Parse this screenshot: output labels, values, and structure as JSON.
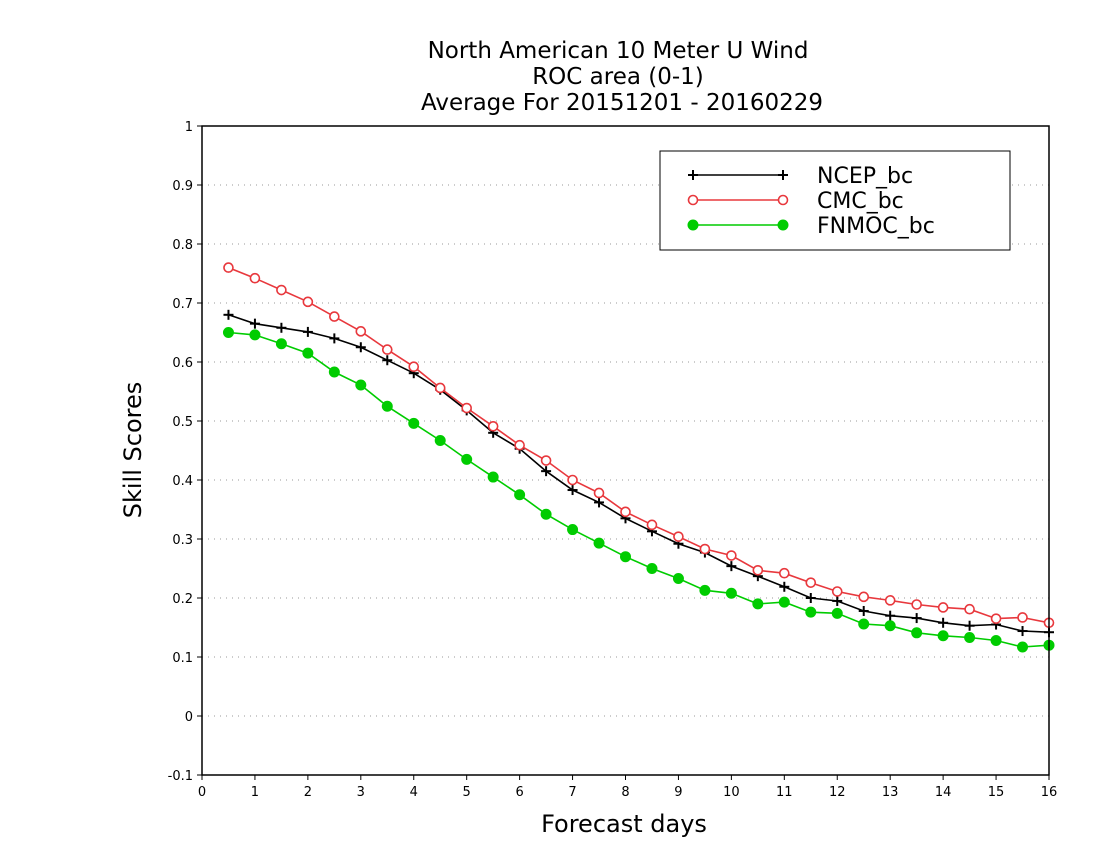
{
  "chart_data": {
    "type": "line",
    "title": [
      "North American 10 Meter U Wind",
      "ROC area (0-1)",
      "Average For 20151201 - 20160229"
    ],
    "xlabel": "Forecast days",
    "ylabel": "Skill Scores",
    "xlim": [
      0,
      16
    ],
    "ylim": [
      -0.1,
      1
    ],
    "xticks": [
      0,
      1,
      2,
      3,
      4,
      5,
      6,
      7,
      8,
      9,
      10,
      11,
      12,
      13,
      14,
      15,
      16
    ],
    "yticks": [
      -0.1,
      0,
      0.1,
      0.2,
      0.3,
      0.4,
      0.5,
      0.6,
      0.7,
      0.8,
      0.9,
      1
    ],
    "ytick_labels": [
      "-0.1",
      "0",
      "0.1",
      "0.2",
      "0.3",
      "0.4",
      "0.5",
      "0.6",
      "0.7",
      "0.8",
      "0.9",
      "1"
    ],
    "grid": "horizontal dotted",
    "legend_position": "top-right",
    "x": [
      0.5,
      1,
      1.5,
      2,
      2.5,
      3,
      3.5,
      4,
      4.5,
      5,
      5.5,
      6,
      6.5,
      7,
      7.5,
      8,
      8.5,
      9,
      9.5,
      10,
      10.5,
      11,
      11.5,
      12,
      12.5,
      13,
      13.5,
      14,
      14.5,
      15,
      15.5,
      16
    ],
    "series": [
      {
        "name": "NCEP_bc",
        "color": "#000000",
        "marker": "plus",
        "values": [
          0.68,
          0.665,
          0.658,
          0.651,
          0.64,
          0.625,
          0.603,
          0.581,
          0.553,
          0.518,
          0.48,
          0.453,
          0.415,
          0.383,
          0.362,
          0.335,
          0.313,
          0.292,
          0.277,
          0.254,
          0.237,
          0.219,
          0.2,
          0.195,
          0.178,
          0.17,
          0.166,
          0.158,
          0.153,
          0.155,
          0.144,
          0.142
        ]
      },
      {
        "name": "CMC_bc",
        "color": "#e8383d",
        "marker": "open-circle",
        "values": [
          0.76,
          0.742,
          0.722,
          0.702,
          0.677,
          0.652,
          0.621,
          0.592,
          0.556,
          0.522,
          0.491,
          0.459,
          0.433,
          0.4,
          0.378,
          0.346,
          0.324,
          0.304,
          0.283,
          0.272,
          0.247,
          0.242,
          0.226,
          0.211,
          0.202,
          0.196,
          0.189,
          0.184,
          0.181,
          0.165,
          0.167,
          0.158
        ]
      },
      {
        "name": "FNMOC_bc",
        "color": "#00cc00",
        "marker": "filled-circle",
        "values": [
          0.65,
          0.646,
          0.631,
          0.615,
          0.583,
          0.561,
          0.525,
          0.496,
          0.467,
          0.435,
          0.405,
          0.375,
          0.342,
          0.316,
          0.293,
          0.27,
          0.25,
          0.233,
          0.213,
          0.208,
          0.19,
          0.193,
          0.176,
          0.174,
          0.156,
          0.153,
          0.141,
          0.136,
          0.133,
          0.128,
          0.117,
          0.12
        ]
      }
    ]
  }
}
